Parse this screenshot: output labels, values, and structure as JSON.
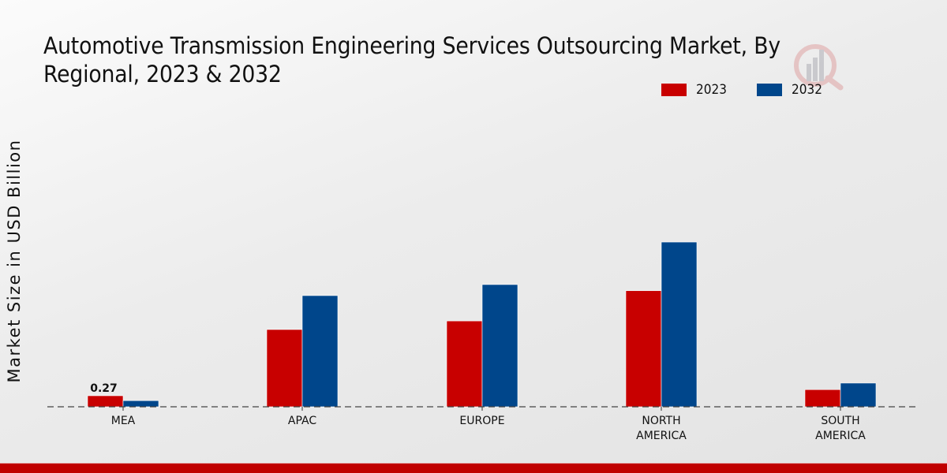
{
  "chart_data": {
    "type": "bar",
    "title": "Automotive Transmission Engineering Services Outsourcing Market, By Regional, 2023 & 2032",
    "title_lines": [
      "Automotive Transmission Engineering Services Outsourcing Market, By",
      "Regional, 2023 & 2032"
    ],
    "xlabel": "",
    "ylabel": "Market Size in USD Billion",
    "categories": [
      "MEA",
      "APAC",
      "EUROPE",
      "NORTH AMERICA",
      "SOUTH AMERICA"
    ],
    "category_label_lines": [
      [
        "MEA"
      ],
      [
        "APAC"
      ],
      [
        "EUROPE"
      ],
      [
        "NORTH",
        "AMERICA"
      ],
      [
        "SOUTH",
        "AMERICA"
      ]
    ],
    "series": [
      {
        "name": "2023",
        "color": "#c80000",
        "values": [
          0.27,
          1.89,
          2.1,
          2.84,
          0.42
        ]
      },
      {
        "name": "2032",
        "color": "#00468b",
        "values": [
          0.15,
          2.72,
          2.99,
          4.03,
          0.58
        ]
      }
    ],
    "data_labels": [
      {
        "series": "2023",
        "category": "MEA",
        "text": "0.27"
      }
    ],
    "ylim": [
      0,
      4.5
    ],
    "grid": false,
    "baseline_style": "dashed",
    "legend_position": "top-right"
  },
  "legend": {
    "items": [
      {
        "label": "2023",
        "color": "#c80000"
      },
      {
        "label": "2032",
        "color": "#00468b"
      }
    ]
  },
  "footer": {
    "color": "#c00000"
  }
}
